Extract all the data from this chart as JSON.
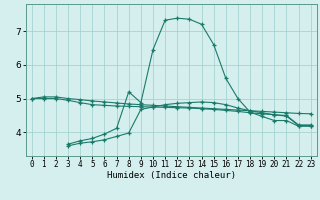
{
  "xlabel": "Humidex (Indice chaleur)",
  "bg_color": "#d4efee",
  "grid_color": "#9ecfcb",
  "line_color": "#1a7a6a",
  "xlim": [
    -0.5,
    23.5
  ],
  "ylim": [
    3.3,
    7.8
  ],
  "yticks": [
    4,
    5,
    6,
    7
  ],
  "xticks": [
    0,
    1,
    2,
    3,
    4,
    5,
    6,
    7,
    8,
    9,
    10,
    11,
    12,
    13,
    14,
    15,
    16,
    17,
    18,
    19,
    20,
    21,
    22,
    23
  ],
  "series": [
    {
      "x": [
        0,
        1,
        2,
        3,
        4,
        5,
        6,
        7,
        8,
        9,
        10,
        11,
        12,
        13,
        14,
        15,
        16,
        17,
        18,
        19,
        20,
        21,
        22,
        23
      ],
      "y": [
        5.0,
        5.05,
        5.05,
        5.0,
        4.97,
        4.93,
        4.9,
        4.87,
        4.84,
        4.82,
        4.8,
        4.78,
        4.76,
        4.74,
        4.72,
        4.7,
        4.68,
        4.66,
        4.64,
        4.62,
        4.6,
        4.58,
        4.56,
        4.55
      ]
    },
    {
      "x": [
        0,
        1,
        2,
        3,
        4,
        5,
        6,
        7,
        8,
        9,
        10,
        11,
        12,
        13,
        14,
        15,
        16,
        17,
        18,
        19,
        20,
        21,
        22,
        23
      ],
      "y": [
        5.0,
        5.0,
        5.0,
        4.95,
        4.88,
        4.82,
        4.8,
        4.78,
        4.77,
        4.76,
        4.75,
        4.74,
        4.73,
        4.72,
        4.7,
        4.68,
        4.65,
        4.62,
        4.58,
        4.55,
        4.52,
        4.5,
        4.22,
        4.22
      ]
    },
    {
      "x": [
        3,
        4,
        5,
        6,
        7,
        8,
        9,
        10,
        11,
        12,
        13,
        14,
        15,
        16,
        17,
        18,
        19,
        20,
        21,
        22,
        23
      ],
      "y": [
        3.65,
        3.75,
        3.82,
        3.95,
        4.12,
        5.2,
        4.88,
        6.45,
        7.32,
        7.38,
        7.35,
        7.2,
        6.6,
        5.6,
        5.0,
        4.6,
        4.47,
        4.35,
        4.35,
        4.18,
        4.18
      ]
    },
    {
      "x": [
        3,
        4,
        5,
        6,
        7,
        8,
        9,
        10,
        11,
        12,
        13,
        14,
        15,
        16,
        17,
        18,
        19,
        20,
        21,
        22,
        23
      ],
      "y": [
        3.6,
        3.68,
        3.72,
        3.78,
        3.88,
        3.98,
        4.68,
        4.75,
        4.82,
        4.86,
        4.88,
        4.9,
        4.88,
        4.82,
        4.72,
        4.64,
        4.58,
        4.52,
        4.48,
        4.2,
        4.2
      ]
    }
  ]
}
